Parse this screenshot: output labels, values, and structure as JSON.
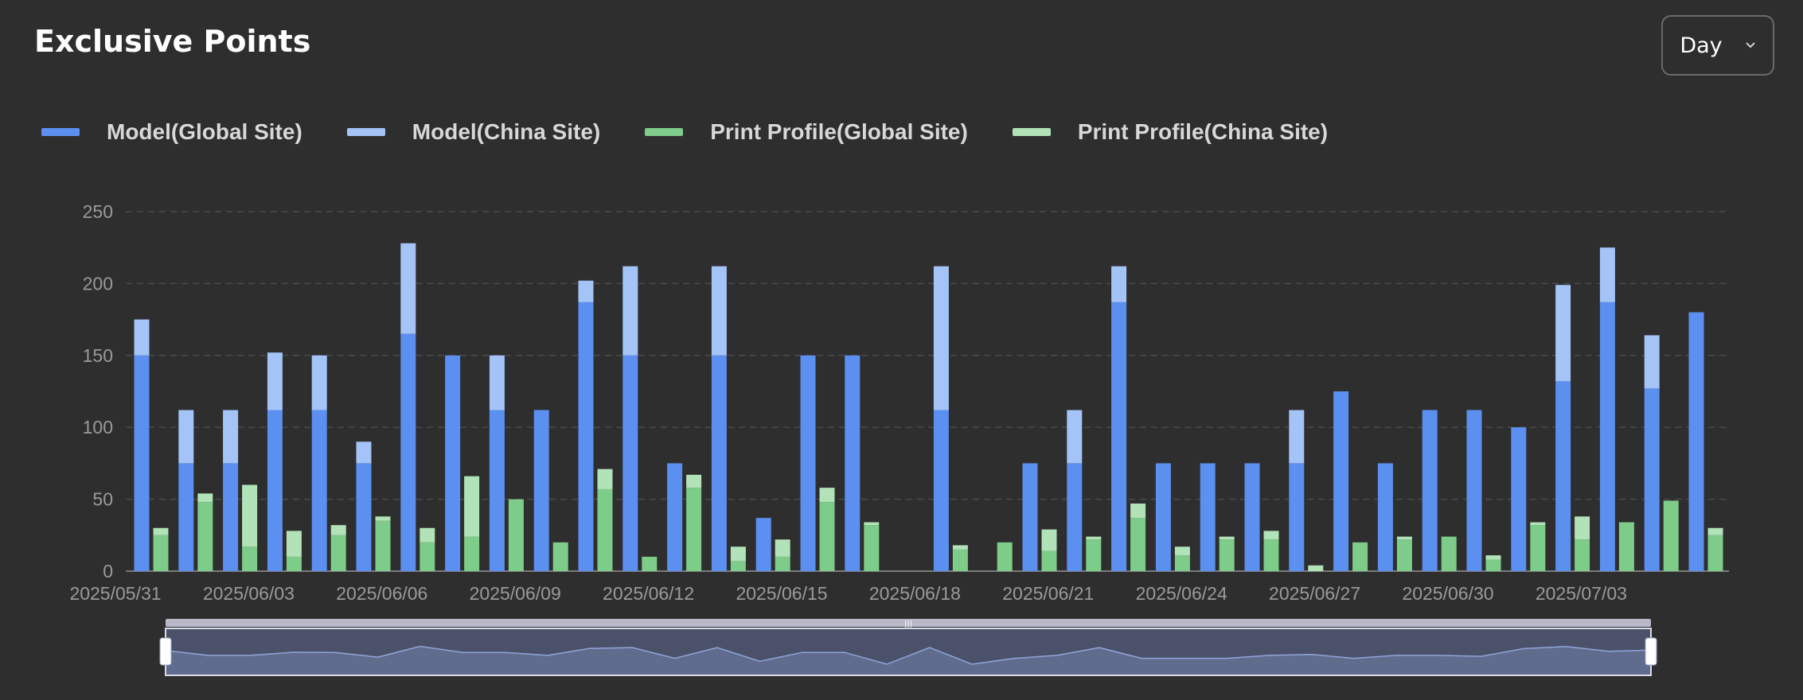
{
  "header": {
    "title": "Exclusive Points",
    "range_select": {
      "value": "Day",
      "icon": "chevron-down-icon"
    }
  },
  "colors": {
    "model_global": "#5b8ff0",
    "model_china": "#a4c3f7",
    "print_global": "#7dcc8a",
    "print_china": "#b2e3b8",
    "background": "#2e2e2e",
    "grid": "#4a4a4a"
  },
  "chart_data": {
    "type": "bar",
    "stacked": true,
    "grid": true,
    "legend_position": "top-left",
    "ylim": [
      0,
      250
    ],
    "yticks": [
      0,
      50,
      100,
      150,
      200,
      250
    ],
    "x_tick_labels": [
      "2025/05/31",
      "2025/06/03",
      "2025/06/06",
      "2025/06/09",
      "2025/06/12",
      "2025/06/15",
      "2025/06/18",
      "2025/06/21",
      "2025/06/24",
      "2025/06/27",
      "2025/06/30",
      "2025/07/03"
    ],
    "categories": [
      "2025/05/31",
      "2025/06/01",
      "2025/06/02",
      "2025/06/03",
      "2025/06/04",
      "2025/06/05",
      "2025/06/06",
      "2025/06/07",
      "2025/06/08",
      "2025/06/09",
      "2025/06/10",
      "2025/06/11",
      "2025/06/12",
      "2025/06/13",
      "2025/06/14",
      "2025/06/15",
      "2025/06/16",
      "2025/06/17",
      "2025/06/18",
      "2025/06/19",
      "2025/06/20",
      "2025/06/21",
      "2025/06/22",
      "2025/06/23",
      "2025/06/24",
      "2025/06/25",
      "2025/06/26",
      "2025/06/27",
      "2025/06/28",
      "2025/06/29",
      "2025/06/30",
      "2025/07/01",
      "2025/07/02",
      "2025/07/03",
      "2025/07/04",
      "2025/07/05"
    ],
    "stacks": [
      {
        "stack": "model",
        "series": [
          {
            "name": "Model(Global Site)",
            "values": [
              150,
              75,
              75,
              112,
              112,
              75,
              165,
              150,
              112,
              112,
              187,
              150,
              75,
              150,
              37,
              150,
              150,
              0,
              112,
              0,
              75,
              75,
              187,
              75,
              75,
              75,
              75,
              125,
              75,
              112,
              112,
              100,
              132,
              187,
              127,
              180
            ]
          },
          {
            "name": "Model(China Site)",
            "values": [
              25,
              37,
              37,
              40,
              38,
              15,
              63,
              0,
              38,
              0,
              15,
              62,
              0,
              62,
              0,
              0,
              0,
              0,
              100,
              0,
              0,
              37,
              25,
              0,
              0,
              0,
              37,
              0,
              0,
              0,
              0,
              0,
              67,
              38,
              37,
              0
            ]
          }
        ]
      },
      {
        "stack": "print",
        "series": [
          {
            "name": "Print Profile(Global Site)",
            "values": [
              25,
              48,
              17,
              10,
              25,
              35,
              20,
              24,
              50,
              20,
              57,
              10,
              58,
              7,
              10,
              48,
              32,
              0,
              15,
              20,
              14,
              22,
              37,
              11,
              22,
              22,
              0,
              20,
              22,
              24,
              8,
              32,
              22,
              34,
              49,
              25
            ]
          },
          {
            "name": "Print Profile(China Site)",
            "values": [
              5,
              6,
              43,
              18,
              7,
              3,
              10,
              42,
              0,
              0,
              14,
              0,
              9,
              10,
              12,
              10,
              2,
              0,
              3,
              0,
              15,
              2,
              10,
              6,
              2,
              6,
              4,
              0,
              2,
              0,
              3,
              2,
              16,
              0,
              0,
              5
            ]
          }
        ]
      }
    ]
  },
  "data_zoom": {
    "start_percent": 0,
    "end_percent": 100,
    "handle_grip": "|||"
  }
}
